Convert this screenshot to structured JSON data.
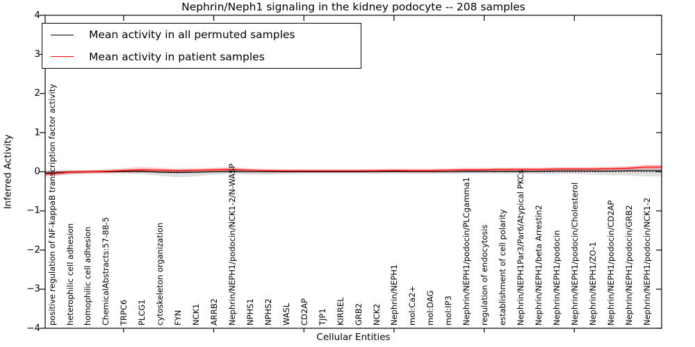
{
  "chart_data": {
    "type": "line",
    "title": "Nephrin/Neph1 signaling in the kidney podocyte -- 208 samples",
    "xlabel": "Cellular Entities",
    "ylabel": "Inferred Activity",
    "ylim": [
      -4,
      4
    ],
    "yticks": [
      4,
      3,
      2,
      1,
      0,
      -1,
      -2,
      -3,
      -4
    ],
    "xtick_indices": [
      4,
      9,
      14,
      19,
      24,
      29
    ],
    "grid": false,
    "legend_position": "upper left",
    "zero_line": {
      "y": 0,
      "style": "dotted",
      "color": "#000000"
    },
    "categories": [
      "positive regulation of NF-kappaB transcription factor activity",
      "heterophilic cell adhesion",
      "homophilic cell adhesion",
      "ChemicalAbstracts:57-88-5",
      "TRPC6",
      "PLCG1",
      "cytoskeleton organization",
      "FYN",
      "NCK1",
      "ARRB2",
      "Nephrin/NEPH1/podocin/NCK1-2/N-WASP",
      "NPHS1",
      "NPHS2",
      "WASL",
      "CD2AP",
      "TJP1",
      "KIRREL",
      "GRB2",
      "NCK2",
      "Nephrin/NEPH1",
      "mol:Ca2+",
      "mol:DAG",
      "mol:IP3",
      "Nephrin/NEPH1/podocin/PLCgamma1",
      "regulation of endocytosis",
      "establishment of cell polarity",
      "Nephrin/NEPH1Par3/Par6/Atypical PKCs",
      "Nephrin/NEPH1/beta Arrestin2",
      "Nephrin/NEPH1/podocin",
      "Nephrin/NEPH1/podocin/Cholesterol",
      "Nephrin/NEPH1/ZO-1",
      "Nephrin/NEPH1/podocin/CD2AP",
      "Nephrin/NEPH1/podocin/GRB2",
      "Nephrin/NEPH1/podocin/NCK1-2"
    ],
    "series": [
      {
        "name": "Mean activity in all permuted samples",
        "color": "#000000",
        "line_width": 1.1,
        "band_color": "rgba(0,0,0,0.12)",
        "inner_band_halfwidth": 0.03,
        "values": [
          -0.03,
          -0.01,
          0.0,
          0.0,
          0.01,
          0.01,
          -0.01,
          -0.02,
          -0.01,
          0.0,
          0.01,
          0.0,
          0.0,
          0.0,
          0.0,
          0.0,
          0.0,
          0.0,
          0.0,
          0.01,
          0.0,
          0.0,
          0.0,
          0.01,
          0.01,
          0.01,
          0.01,
          0.01,
          0.02,
          0.02,
          0.02,
          0.02,
          0.03,
          0.03
        ],
        "band_upper": [
          0.04,
          0.04,
          0.04,
          0.04,
          0.05,
          0.05,
          0.05,
          0.05,
          0.05,
          0.06,
          0.07,
          0.05,
          0.05,
          0.05,
          0.05,
          0.05,
          0.05,
          0.05,
          0.05,
          0.05,
          0.05,
          0.05,
          0.05,
          0.05,
          0.05,
          0.05,
          0.06,
          0.06,
          0.06,
          0.06,
          0.06,
          0.07,
          0.08,
          0.1
        ],
        "band_lower": [
          -0.1,
          -0.07,
          -0.05,
          -0.05,
          -0.05,
          -0.06,
          -0.1,
          -0.14,
          -0.12,
          -0.08,
          -0.06,
          -0.07,
          -0.08,
          -0.06,
          -0.05,
          -0.05,
          -0.05,
          -0.05,
          -0.05,
          -0.05,
          -0.05,
          -0.05,
          -0.05,
          -0.05,
          -0.05,
          -0.05,
          -0.06,
          -0.06,
          -0.06,
          -0.06,
          -0.08,
          -0.09,
          -0.1,
          -0.12
        ]
      },
      {
        "name": "Mean activity in patient samples",
        "color": "#ff0000",
        "line_width": 1.3,
        "band_color": "rgba(255,0,0,0.16)",
        "inner_band_halfwidth": 0.04,
        "values": [
          -0.05,
          -0.01,
          0.0,
          0.01,
          0.03,
          0.05,
          0.04,
          0.03,
          0.04,
          0.05,
          0.06,
          0.04,
          0.03,
          0.02,
          0.02,
          0.02,
          0.02,
          0.02,
          0.03,
          0.03,
          0.03,
          0.03,
          0.04,
          0.05,
          0.05,
          0.06,
          0.06,
          0.06,
          0.07,
          0.07,
          0.07,
          0.08,
          0.09,
          0.12
        ],
        "band_upper": [
          0.02,
          0.03,
          0.04,
          0.05,
          0.09,
          0.13,
          0.1,
          0.07,
          0.08,
          0.1,
          0.12,
          0.08,
          0.06,
          0.06,
          0.06,
          0.06,
          0.06,
          0.06,
          0.06,
          0.07,
          0.07,
          0.07,
          0.08,
          0.09,
          0.09,
          0.1,
          0.1,
          0.1,
          0.11,
          0.11,
          0.11,
          0.12,
          0.14,
          0.18
        ],
        "band_lower": [
          -0.12,
          -0.06,
          -0.04,
          -0.03,
          -0.02,
          -0.02,
          -0.02,
          -0.02,
          -0.01,
          -0.01,
          0.0,
          -0.01,
          -0.01,
          -0.01,
          -0.01,
          -0.01,
          -0.01,
          -0.01,
          -0.01,
          0.0,
          0.0,
          0.0,
          0.0,
          0.01,
          0.01,
          0.01,
          0.02,
          0.02,
          0.03,
          0.03,
          0.03,
          0.04,
          0.05,
          0.06
        ]
      }
    ]
  }
}
